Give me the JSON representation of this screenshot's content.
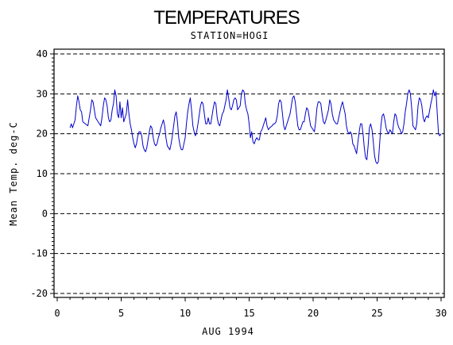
{
  "chart_data": {
    "type": "line",
    "title": "TEMPERATURES",
    "subtitle": "STATION=HOGI",
    "xlabel": "AUG 1994",
    "ylabel": "Mean Temp. deg-C",
    "xlim": [
      0,
      30
    ],
    "ylim": [
      -20,
      40
    ],
    "x_ticks": [
      0,
      5,
      10,
      15,
      20,
      25,
      30
    ],
    "y_ticks": [
      -20,
      -10,
      0,
      10,
      20,
      30,
      40
    ],
    "grid": "horizontal dashed at major y ticks",
    "series_color": "#0000cc",
    "series": [
      {
        "points": [
          [
            1.0,
            21.5
          ],
          [
            1.1,
            22.5
          ],
          [
            1.2,
            21.5
          ],
          [
            1.4,
            23.5
          ],
          [
            1.5,
            27.0
          ],
          [
            1.6,
            29.5
          ],
          [
            1.7,
            28.0
          ],
          [
            1.8,
            26.0
          ],
          [
            1.9,
            25.5
          ],
          [
            2.0,
            23.0
          ],
          [
            2.2,
            22.5
          ],
          [
            2.4,
            22.0
          ],
          [
            2.6,
            26.0
          ],
          [
            2.7,
            28.5
          ],
          [
            2.8,
            28.0
          ],
          [
            2.9,
            26.0
          ],
          [
            3.0,
            24.0
          ],
          [
            3.2,
            23.0
          ],
          [
            3.4,
            22.0
          ],
          [
            3.5,
            24.0
          ],
          [
            3.6,
            27.0
          ],
          [
            3.7,
            29.0
          ],
          [
            3.8,
            28.5
          ],
          [
            3.9,
            27.0
          ],
          [
            4.0,
            24.0
          ],
          [
            4.1,
            23.0
          ],
          [
            4.2,
            23.5
          ],
          [
            4.3,
            26.0
          ],
          [
            4.4,
            27.5
          ],
          [
            4.5,
            31.0
          ],
          [
            4.6,
            29.5
          ],
          [
            4.7,
            25.0
          ],
          [
            4.8,
            24.0
          ],
          [
            4.9,
            28.0
          ],
          [
            5.0,
            24.0
          ],
          [
            5.1,
            26.5
          ],
          [
            5.2,
            23.0
          ],
          [
            5.3,
            24.0
          ],
          [
            5.4,
            25.0
          ],
          [
            5.5,
            28.5
          ],
          [
            5.6,
            25.0
          ],
          [
            5.7,
            22.5
          ],
          [
            5.8,
            21.0
          ],
          [
            5.9,
            19.0
          ],
          [
            6.0,
            17.5
          ],
          [
            6.1,
            16.5
          ],
          [
            6.2,
            17.5
          ],
          [
            6.3,
            19.5
          ],
          [
            6.4,
            20.5
          ],
          [
            6.5,
            20.5
          ],
          [
            6.6,
            19.5
          ],
          [
            6.7,
            17.0
          ],
          [
            6.8,
            16.0
          ],
          [
            6.9,
            15.5
          ],
          [
            7.0,
            16.5
          ],
          [
            7.2,
            20.5
          ],
          [
            7.3,
            22.0
          ],
          [
            7.4,
            21.5
          ],
          [
            7.5,
            19.0
          ],
          [
            7.6,
            17.5
          ],
          [
            7.7,
            17.0
          ],
          [
            7.8,
            17.5
          ],
          [
            7.9,
            19.0
          ],
          [
            8.0,
            20.0
          ],
          [
            8.1,
            21.5
          ],
          [
            8.2,
            22.5
          ],
          [
            8.3,
            23.5
          ],
          [
            8.4,
            22.0
          ],
          [
            8.5,
            19.0
          ],
          [
            8.6,
            17.0
          ],
          [
            8.7,
            16.5
          ],
          [
            8.8,
            16.0
          ],
          [
            8.9,
            17.5
          ],
          [
            9.0,
            19.5
          ],
          [
            9.2,
            24.5
          ],
          [
            9.3,
            25.5
          ],
          [
            9.4,
            23.0
          ],
          [
            9.5,
            19.0
          ],
          [
            9.6,
            17.0
          ],
          [
            9.7,
            16.0
          ],
          [
            9.8,
            16.0
          ],
          [
            9.9,
            17.5
          ],
          [
            10.0,
            19.0
          ],
          [
            10.1,
            22.5
          ],
          [
            10.2,
            25.5
          ],
          [
            10.3,
            27.5
          ],
          [
            10.4,
            29.0
          ],
          [
            10.5,
            26.0
          ],
          [
            10.6,
            22.0
          ],
          [
            10.7,
            20.5
          ],
          [
            10.8,
            19.5
          ],
          [
            10.9,
            20.5
          ],
          [
            11.0,
            22.5
          ],
          [
            11.2,
            27.0
          ],
          [
            11.3,
            28.0
          ],
          [
            11.4,
            27.5
          ],
          [
            11.5,
            25.0
          ],
          [
            11.6,
            22.5
          ],
          [
            11.7,
            22.5
          ],
          [
            11.8,
            24.0
          ],
          [
            11.9,
            22.5
          ],
          [
            12.0,
            22.5
          ],
          [
            12.2,
            26.5
          ],
          [
            12.3,
            28.0
          ],
          [
            12.4,
            27.5
          ],
          [
            12.5,
            24.0
          ],
          [
            12.6,
            22.5
          ],
          [
            12.7,
            22.0
          ],
          [
            12.8,
            23.5
          ],
          [
            12.9,
            25.0
          ],
          [
            13.0,
            25.5
          ],
          [
            13.1,
            27.0
          ],
          [
            13.2,
            28.5
          ],
          [
            13.3,
            31.0
          ],
          [
            13.4,
            29.0
          ],
          [
            13.5,
            26.5
          ],
          [
            13.6,
            26.0
          ],
          [
            13.7,
            27.0
          ],
          [
            13.8,
            28.5
          ],
          [
            13.9,
            29.0
          ],
          [
            14.0,
            28.5
          ],
          [
            14.1,
            26.0
          ],
          [
            14.2,
            26.5
          ],
          [
            14.3,
            27.0
          ],
          [
            14.4,
            30.0
          ],
          [
            14.5,
            31.0
          ],
          [
            14.6,
            30.5
          ],
          [
            14.7,
            27.5
          ],
          [
            14.8,
            26.0
          ],
          [
            14.9,
            25.0
          ],
          [
            15.0,
            22.5
          ],
          [
            15.1,
            19.0
          ],
          [
            15.2,
            20.5
          ],
          [
            15.3,
            18.0
          ],
          [
            15.4,
            17.5
          ],
          [
            15.5,
            18.5
          ],
          [
            15.6,
            19.0
          ],
          [
            15.7,
            18.5
          ],
          [
            15.8,
            18.5
          ],
          [
            15.9,
            20.5
          ],
          [
            16.0,
            21.0
          ],
          [
            16.1,
            22.0
          ],
          [
            16.2,
            23.0
          ],
          [
            16.3,
            24.0
          ],
          [
            16.4,
            22.0
          ],
          [
            16.5,
            21.0
          ],
          [
            16.6,
            21.5
          ],
          [
            16.8,
            22.0
          ],
          [
            16.9,
            22.5
          ],
          [
            17.0,
            22.5
          ],
          [
            17.1,
            23.0
          ],
          [
            17.2,
            24.5
          ],
          [
            17.3,
            27.5
          ],
          [
            17.4,
            28.5
          ],
          [
            17.5,
            28.0
          ],
          [
            17.6,
            25.0
          ],
          [
            17.7,
            22.0
          ],
          [
            17.8,
            21.0
          ],
          [
            17.9,
            22.0
          ],
          [
            18.0,
            23.0
          ],
          [
            18.2,
            25.0
          ],
          [
            18.3,
            27.0
          ],
          [
            18.4,
            29.0
          ],
          [
            18.5,
            29.5
          ],
          [
            18.6,
            28.0
          ],
          [
            18.7,
            25.0
          ],
          [
            18.8,
            22.0
          ],
          [
            18.9,
            21.0
          ],
          [
            19.0,
            21.0
          ],
          [
            19.2,
            23.0
          ],
          [
            19.3,
            23.0
          ],
          [
            19.4,
            25.0
          ],
          [
            19.5,
            26.5
          ],
          [
            19.6,
            26.0
          ],
          [
            19.7,
            24.0
          ],
          [
            19.8,
            22.0
          ],
          [
            19.9,
            21.5
          ],
          [
            20.0,
            21.0
          ],
          [
            20.1,
            20.5
          ],
          [
            20.2,
            23.0
          ],
          [
            20.3,
            26.5
          ],
          [
            20.4,
            28.0
          ],
          [
            20.5,
            28.0
          ],
          [
            20.6,
            27.5
          ],
          [
            20.7,
            25.0
          ],
          [
            20.8,
            23.0
          ],
          [
            20.9,
            22.5
          ],
          [
            21.0,
            23.5
          ],
          [
            21.2,
            26.0
          ],
          [
            21.3,
            28.5
          ],
          [
            21.4,
            27.5
          ],
          [
            21.5,
            25.0
          ],
          [
            21.6,
            23.5
          ],
          [
            21.7,
            23.0
          ],
          [
            21.8,
            22.5
          ],
          [
            21.9,
            22.5
          ],
          [
            22.0,
            24.0
          ],
          [
            22.2,
            27.0
          ],
          [
            22.3,
            28.0
          ],
          [
            22.4,
            26.5
          ],
          [
            22.5,
            25.0
          ],
          [
            22.6,
            22.0
          ],
          [
            22.7,
            20.5
          ],
          [
            22.8,
            20.0
          ],
          [
            22.9,
            20.5
          ],
          [
            23.0,
            20.0
          ],
          [
            23.1,
            17.5
          ],
          [
            23.2,
            17.0
          ],
          [
            23.3,
            16.0
          ],
          [
            23.4,
            15.0
          ],
          [
            23.5,
            18.0
          ],
          [
            23.6,
            20.5
          ],
          [
            23.7,
            22.5
          ],
          [
            23.8,
            22.5
          ],
          [
            23.9,
            20.0
          ],
          [
            24.0,
            16.5
          ],
          [
            24.1,
            14.0
          ],
          [
            24.2,
            13.5
          ],
          [
            24.3,
            17.0
          ],
          [
            24.4,
            21.5
          ],
          [
            24.5,
            22.5
          ],
          [
            24.6,
            21.0
          ],
          [
            24.7,
            18.0
          ],
          [
            24.8,
            14.5
          ],
          [
            24.9,
            13.0
          ],
          [
            25.0,
            12.5
          ],
          [
            25.1,
            13.0
          ],
          [
            25.2,
            17.5
          ],
          [
            25.3,
            22.0
          ],
          [
            25.4,
            24.5
          ],
          [
            25.5,
            25.0
          ],
          [
            25.6,
            23.5
          ],
          [
            25.7,
            21.5
          ],
          [
            25.8,
            20.5
          ],
          [
            25.9,
            20.0
          ],
          [
            26.0,
            21.0
          ],
          [
            26.2,
            20.0
          ],
          [
            26.3,
            23.0
          ],
          [
            26.4,
            25.0
          ],
          [
            26.5,
            24.5
          ],
          [
            26.6,
            22.5
          ],
          [
            26.7,
            21.5
          ],
          [
            26.8,
            21.0
          ],
          [
            26.9,
            20.0
          ],
          [
            27.0,
            20.5
          ],
          [
            27.1,
            22.5
          ],
          [
            27.2,
            25.5
          ],
          [
            27.3,
            27.5
          ],
          [
            27.4,
            30.0
          ],
          [
            27.5,
            31.0
          ],
          [
            27.6,
            30.0
          ],
          [
            27.7,
            26.5
          ],
          [
            27.8,
            22.0
          ],
          [
            27.9,
            21.5
          ],
          [
            28.0,
            21.0
          ],
          [
            28.1,
            22.5
          ],
          [
            28.2,
            27.0
          ],
          [
            28.3,
            29.0
          ],
          [
            28.4,
            28.5
          ],
          [
            28.5,
            27.0
          ],
          [
            28.6,
            24.0
          ],
          [
            28.7,
            23.0
          ],
          [
            28.8,
            24.0
          ],
          [
            28.9,
            24.5
          ],
          [
            29.0,
            24.0
          ],
          [
            29.2,
            27.5
          ],
          [
            29.3,
            29.0
          ],
          [
            29.4,
            31.0
          ],
          [
            29.5,
            29.5
          ],
          [
            29.6,
            30.5
          ],
          [
            29.7,
            25.0
          ],
          [
            29.8,
            20.0
          ],
          [
            29.9,
            19.5
          ],
          [
            30.0,
            20.0
          ]
        ]
      }
    ]
  }
}
